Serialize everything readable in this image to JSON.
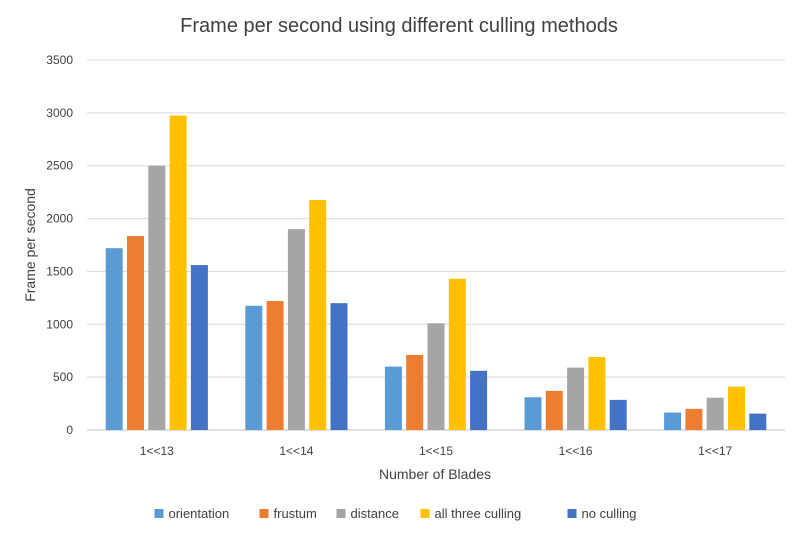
{
  "chart_data": {
    "type": "bar",
    "title": "Frame per second using different culling methods",
    "xlabel": "Number of Blades",
    "ylabel": "Frame per second",
    "categories": [
      "1<<13",
      "1<<14",
      "1<<15",
      "1<<16",
      "1<<17"
    ],
    "ylim": [
      0,
      3500
    ],
    "yticks": [
      0,
      500,
      1000,
      1500,
      2000,
      2500,
      3000,
      3500
    ],
    "grid": true,
    "legend_position": "bottom",
    "series": [
      {
        "name": "orientation",
        "color": "#5B9BD5",
        "values": [
          1720,
          1175,
          600,
          310,
          165
        ]
      },
      {
        "name": "frustum",
        "color": "#ED7D31",
        "values": [
          1835,
          1220,
          710,
          370,
          200
        ]
      },
      {
        "name": "distance",
        "color": "#A5A5A5",
        "values": [
          2500,
          1900,
          1010,
          590,
          305
        ]
      },
      {
        "name": "all three culling",
        "color": "#FFC000",
        "values": [
          2975,
          2175,
          1430,
          690,
          410
        ]
      },
      {
        "name": "no culling",
        "color": "#4472C4",
        "values": [
          1560,
          1200,
          560,
          285,
          155
        ]
      }
    ]
  }
}
